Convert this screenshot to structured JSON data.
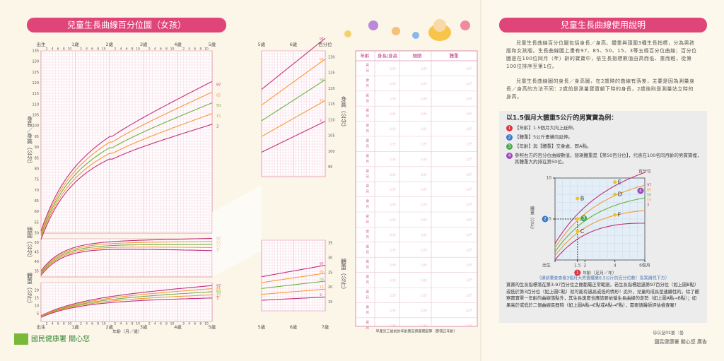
{
  "left": {
    "title": "兒童生長曲線百分位圖（女孩）",
    "ages": [
      "出生",
      "1歲",
      "2歲",
      "3歲",
      "4歲",
      "5歲"
    ],
    "month_ticks": [
      "2",
      "4",
      "6",
      "8",
      "10"
    ],
    "height_ticks": [
      135,
      130,
      125,
      120,
      115,
      110,
      105,
      100,
      95,
      90,
      85,
      80,
      75,
      70,
      65,
      60,
      55,
      50
    ],
    "head_ticks": [
      50,
      45,
      40,
      35
    ],
    "weight_ticks": [
      20,
      15,
      10,
      5
    ],
    "height_label": "身長／身高（公分）",
    "head_label": "頭圍（公分）",
    "weight_label": "體重（公斤）",
    "x_label": "年齡（月／歲）",
    "percentiles": [
      "97",
      "85",
      "50",
      "15",
      "3"
    ]
  },
  "middle": {
    "ages": [
      "5歲",
      "6歲",
      "7歲"
    ],
    "percentile_head": "百分位",
    "height_ticks": [
      130,
      125,
      120,
      115,
      110,
      105,
      100,
      95
    ],
    "weight_ticks": [
      35,
      30,
      25,
      20,
      15
    ],
    "height_label": "身高（公分）",
    "weight_label": "體重（公斤）"
  },
  "table": {
    "headers": [
      "年齡",
      "身長/身高",
      "頭圍",
      "體重"
    ],
    "row_age": [
      "歲",
      "月"
    ],
    "units": [
      "公分",
      "公分",
      "公斤"
    ],
    "note": "早產兒三歲前的年齡應自預產期起算（即矯正年齡）"
  },
  "logo": "國民健康署 關心您",
  "right": {
    "title": "兒童生長曲線使用說明",
    "paragraphs": [
      "兒童生長曲線百分位圖包括身長／身高、體重與頭圍3種生長指標，分為男孩版和女孩版。生長曲線圖上畫有97、85、50、15、3等五條百分位曲線；百分位圖是在100位同月（年）齡的寶寶中，依生長指標數值由高而低、重而輕，從第100位排序至第1位。",
      "兒童生長曲線圖的身長／身高圖，在2歲時的曲線有落差，主要是因為測量身長／身高的方法不同：2歲前是測量寶寶躺下時的身長，2歲後則是測量站立時的身高。"
    ],
    "box_title": "以1.5個月大體重5公斤的男寶寶為例：",
    "steps": [
      {
        "num": "1",
        "text": "【年齡】1.5個月大向上延伸。"
      },
      {
        "num": "2",
        "text": "【體重】5公斤畫橫向延伸。"
      },
      {
        "num": "3",
        "text": "【年齡】與【體重】交會處，即A點。"
      },
      {
        "num": "4",
        "text": "參照右方的百分位曲線數值，發現體重是【第50百分位】，代表在100名同月齡的男寶寶裡，其體重大約排在第50位。"
      }
    ],
    "mini": {
      "percentile_head": "百分位",
      "ylabel": "體重（公斤）",
      "xlabel": "年齡（足月／年）",
      "ylim": [
        0,
        10
      ],
      "xlim": [
        0,
        6
      ],
      "yticks": [
        10,
        5
      ],
      "xticks": [
        {
          "value": 0,
          "label": "出生"
        },
        1.5,
        2,
        4,
        {
          "value": 6,
          "label": "6個月"
        }
      ],
      "percentiles": [
        "97",
        "85",
        "50",
        "15",
        "3"
      ],
      "points": [
        {
          "label": "A",
          "x": 1.5,
          "y": 5
        },
        {
          "label": "B",
          "x": 1.5,
          "y": 7.5
        },
        {
          "label": "C",
          "x": 1.5,
          "y": 3.5
        },
        {
          "label": "D",
          "x": 4,
          "y": 8
        },
        {
          "label": "E",
          "x": 4,
          "y": 9.5
        },
        {
          "label": "F",
          "x": 4,
          "y": 5.5
        }
      ]
    },
    "quiz": "（請試著查查看3個月大男寶體重6.5公斤的百分位數！答案請見下方）",
    "warning": "寶寶的生長指標落在第3-97百分位之間都屬正常範圍，若生長指標超過第97百分位（如上圖B點）或低於第3百分位（如上圖C點）就可能有過高或低的情形！此外，兒童的成長是連續性的，除了觀察寶寶單一年齡的曲線落點外，其生長速度也應該要依循生長曲線的走勢（如上圖A點→B點）；如果高於或低於二個曲線區間時（如上圖A點→E點或A點→F點），需要請醫師評估檢查喔！",
    "answer": "答：第50百分位",
    "footer": "國民健康署 關心您 廣告"
  }
}
